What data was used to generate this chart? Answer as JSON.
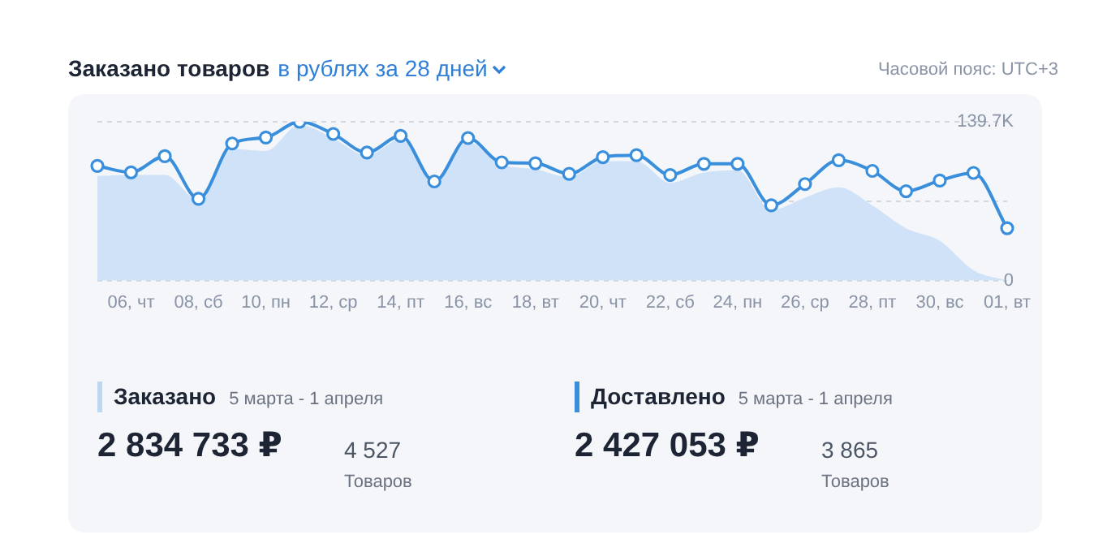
{
  "chart_data": [
    {
      "type": "line",
      "title": "Заказано товаров",
      "subtitle": "в рублях за 28 дней",
      "annotations": [
        "Часовой пояс: UTC+3"
      ],
      "categories": [
        null,
        "06, чт",
        null,
        "08, сб",
        null,
        "10, пн",
        null,
        "12, ср",
        null,
        "14, пт",
        null,
        "16, вс",
        null,
        "18, вт",
        null,
        "20, чт",
        null,
        "22, сб",
        null,
        "24, пн",
        null,
        "26, ср",
        null,
        "28, пт",
        null,
        "30, вс",
        null,
        "01, вт"
      ],
      "series": [
        {
          "type": "area",
          "color": "#cfe2f8",
          "values": [
            92000,
            93000,
            93000,
            71000,
            116000,
            114000,
            137000,
            125000,
            110000,
            124000,
            86000,
            122000,
            102000,
            98000,
            91000,
            105000,
            105000,
            86000,
            95000,
            97000,
            62000,
            73000,
            82000,
            66000,
            46000,
            35000,
            9000,
            0
          ]
        },
        {
          "type": "line",
          "color": "#3a8fdd",
          "marker": "circle",
          "values": [
            100900,
            95200,
            109400,
            71900,
            120600,
            125900,
            139700,
            129000,
            112600,
            127300,
            87200,
            125400,
            104000,
            103200,
            93900,
            108600,
            110300,
            92900,
            102700,
            102700,
            66200,
            84900,
            105900,
            96500,
            78600,
            88000,
            94700,
            46100
          ]
        }
      ],
      "ylim": [
        0,
        139700
      ],
      "yticks": [
        0,
        {
          "value": 69850,
          "label": null
        },
        {
          "value": 139700,
          "label": "139.7K"
        }
      ],
      "grid": "y",
      "legend": false
    },
    {
      "type": "other",
      "title": "Заказано",
      "subtitle": "5 марта - 1 апреля",
      "annotations": [
        "2 834 733 ₽",
        "4 527",
        "Товаров"
      ]
    },
    {
      "type": "other",
      "title": "Доставлено",
      "subtitle": "5 марта - 1 апреля",
      "annotations": [
        "2 427 053 ₽",
        "3 865",
        "Товаров"
      ]
    }
  ]
}
